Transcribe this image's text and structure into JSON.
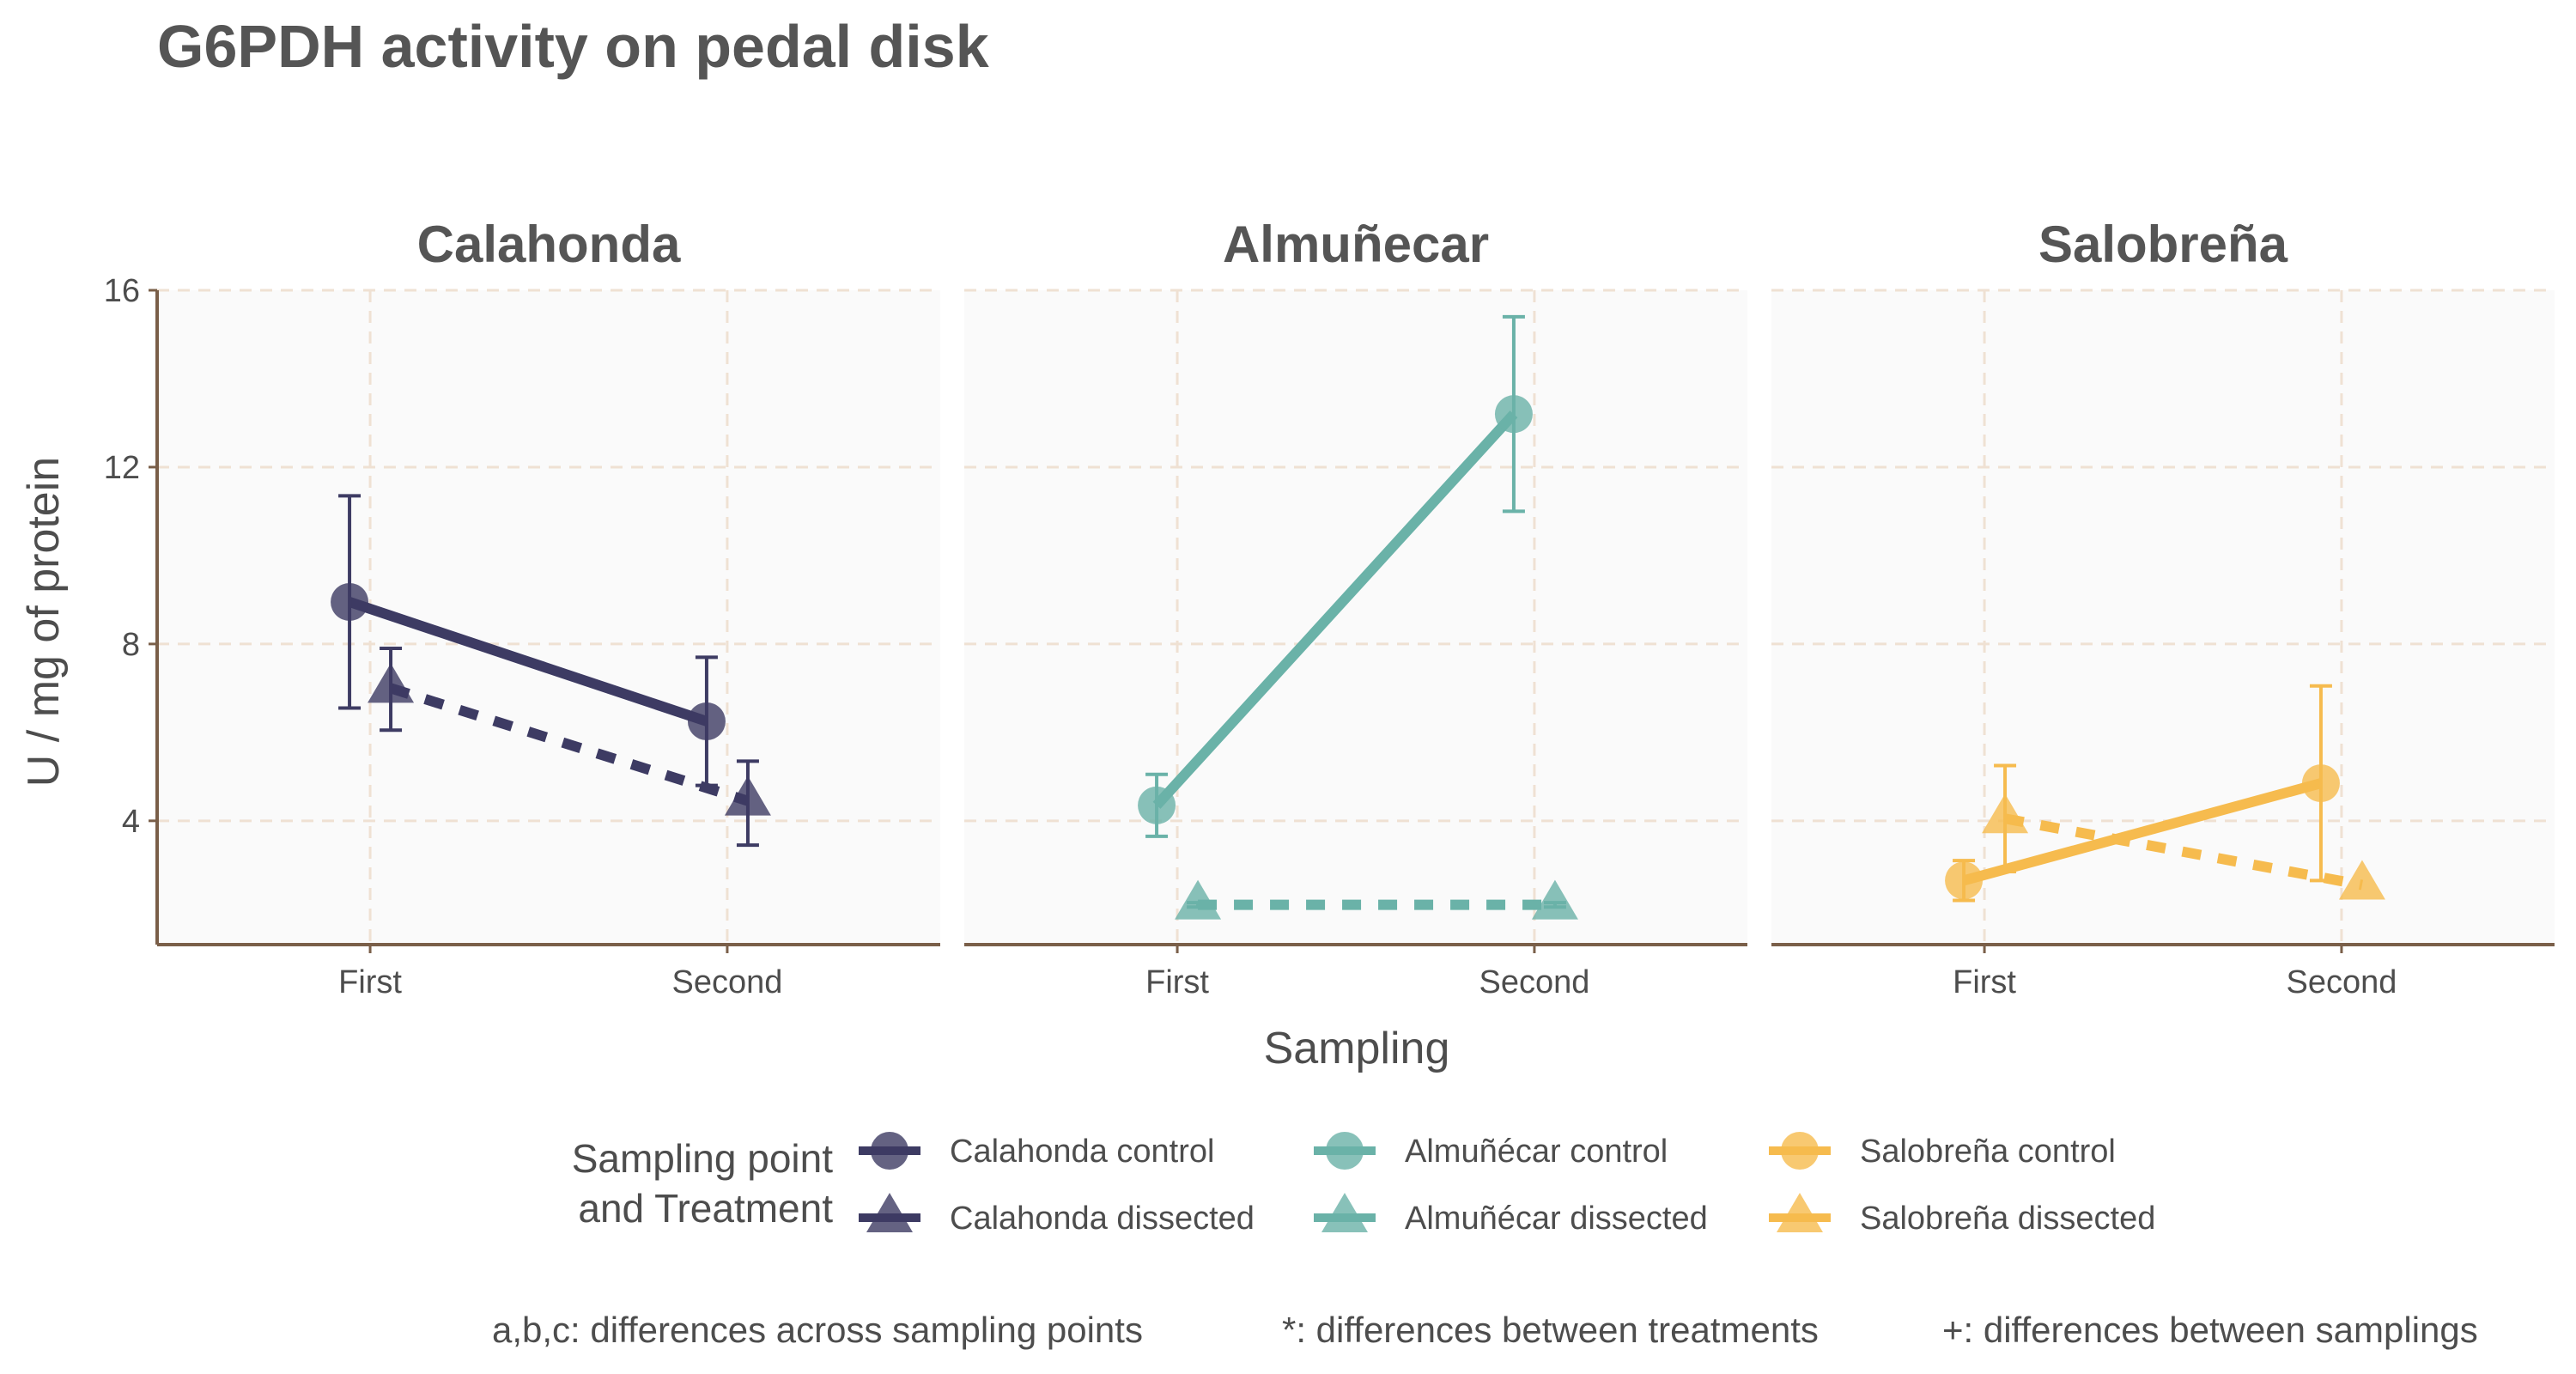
{
  "chart_data": {
    "type": "line",
    "title": "G6PDH activity on pedal disk",
    "xlabel": "Sampling",
    "ylabel": "U / mg  of protein",
    "ylim": [
      1.2,
      16
    ],
    "yticks": [
      4,
      8,
      12,
      16
    ],
    "categories": [
      "First",
      "Second"
    ],
    "grid": true,
    "legend_position": "bottom",
    "legend_title": [
      "Sampling point",
      "and Treatment"
    ],
    "caption": [
      "a,b,c: differences across sampling points",
      "*: differences between treatments",
      "+: differences between samplings"
    ],
    "facets": [
      "Calahonda",
      "Almuñecar",
      "Salobreña"
    ],
    "series": [
      {
        "name": "Calahonda control",
        "facet": "Calahonda",
        "treatment": "control",
        "color": "#3d3b63",
        "values": [
          8.95,
          6.25
        ],
        "err_low": [
          6.55,
          4.8
        ],
        "err_high": [
          11.35,
          7.7
        ]
      },
      {
        "name": "Calahonda dissected",
        "facet": "Calahonda",
        "treatment": "dissected",
        "color": "#3d3b63",
        "values": [
          7.0,
          4.45
        ],
        "err_low": [
          6.05,
          3.45
        ],
        "err_high": [
          7.9,
          5.35
        ]
      },
      {
        "name": "Almuñécar control",
        "facet": "Almuñecar",
        "treatment": "control",
        "color": "#6ab2a8",
        "values": [
          4.35,
          13.2
        ],
        "err_low": [
          3.65,
          11.0
        ],
        "err_high": [
          5.05,
          15.4
        ]
      },
      {
        "name": "Almuñécar dissected",
        "facet": "Almuñecar",
        "treatment": "dissected",
        "color": "#6ab2a8",
        "values": [
          2.1,
          2.1
        ],
        "err_low": [
          2.05,
          2.05
        ],
        "err_high": [
          2.15,
          2.15
        ]
      },
      {
        "name": "Salobreña control",
        "facet": "Salobreña",
        "treatment": "control",
        "color": "#f6bb4e",
        "values": [
          2.65,
          4.85
        ],
        "err_low": [
          2.2,
          2.65
        ],
        "err_high": [
          3.1,
          7.05
        ]
      },
      {
        "name": "Salobreña dissected",
        "facet": "Salobreña",
        "treatment": "dissected",
        "color": "#f6bb4e",
        "values": [
          4.05,
          2.55
        ],
        "err_low": [
          2.85,
          2.55
        ],
        "err_high": [
          5.25,
          2.55
        ]
      }
    ]
  }
}
